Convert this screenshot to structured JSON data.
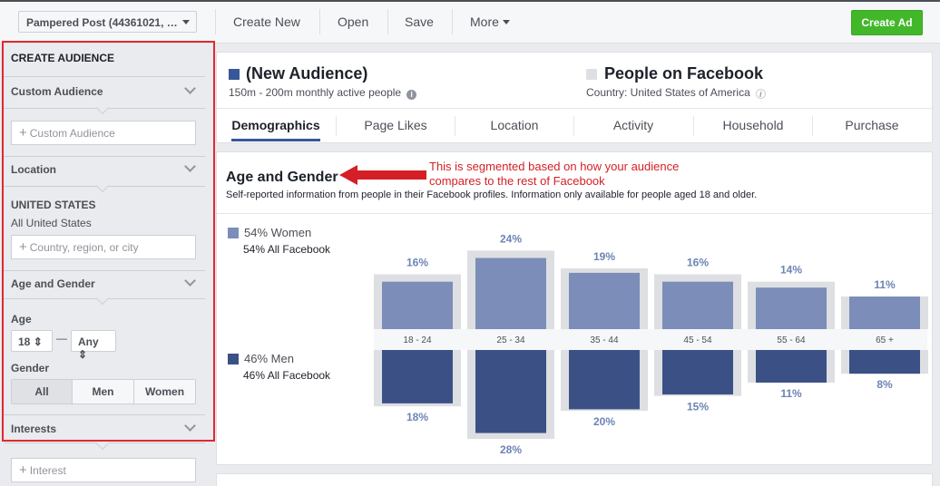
{
  "toolbar": {
    "account": "Pampered Post (44361021, …",
    "create_new": "Create New",
    "open": "Open",
    "save": "Save",
    "more": "More",
    "create_ad": "Create Ad"
  },
  "sidebar": {
    "title": "CREATE AUDIENCE",
    "custom_audience": {
      "label": "Custom Audience",
      "placeholder": "Custom Audience"
    },
    "location": {
      "label": "Location",
      "country": "UNITED STATES",
      "scope": "All United States",
      "placeholder": "Country, region, or city"
    },
    "age_gender": {
      "label": "Age and Gender",
      "age_label": "Age",
      "age_min": "18",
      "age_dash": "—",
      "age_max": "Any",
      "gender_label": "Gender",
      "gender_options": [
        "All",
        "Men",
        "Women"
      ]
    },
    "interests": {
      "label": "Interests",
      "placeholder": "Interest"
    }
  },
  "header": {
    "audience_title": "(New Audience)",
    "audience_sub": "150m - 200m monthly active people",
    "compare_title": "People on Facebook",
    "compare_sub": "Country: United States of America",
    "info_glyph": "i",
    "tabs": [
      "Demographics",
      "Page Likes",
      "Location",
      "Activity",
      "Household",
      "Purchase"
    ]
  },
  "age_gender_panel": {
    "title": "Age and Gender",
    "description": "Self-reported information from people in their Facebook profiles. Information only available for people aged 18 and older.",
    "annotation": "This is segmented based on how your audience compares to the rest of Facebook",
    "legend": {
      "women": "54% Women",
      "women_sub": "54% All Facebook",
      "men": "46% Men",
      "men_sub": "46% All Facebook"
    }
  },
  "colors": {
    "women": "#7b8db8",
    "men": "#3b5186",
    "baseline": "#dddfe2",
    "annotation": "#d41f26",
    "create_ad": "#42b72a"
  },
  "chart_data": {
    "type": "bar",
    "categories": [
      "18 - 24",
      "25 - 34",
      "35 - 44",
      "45 - 54",
      "55 - 64",
      "65 +"
    ],
    "series": [
      {
        "name": "Women",
        "values": [
          16,
          24,
          19,
          16,
          14,
          11
        ],
        "labels": [
          "16%",
          "24%",
          "19%",
          "16%",
          "14%",
          "11%"
        ],
        "baseline": [
          18.5,
          26.5,
          20.5,
          18.5,
          16,
          11
        ]
      },
      {
        "name": "Men",
        "values": [
          18,
          28,
          20,
          15,
          11,
          8
        ],
        "labels": [
          "18%",
          "28%",
          "20%",
          "15%",
          "11%",
          "8%"
        ],
        "baseline": [
          19,
          30,
          20.5,
          15.5,
          11,
          8
        ]
      }
    ]
  }
}
